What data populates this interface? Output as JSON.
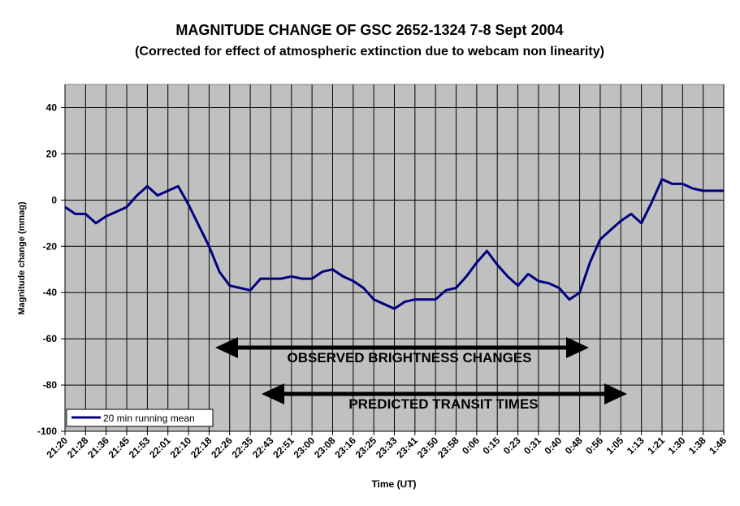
{
  "chart_data": {
    "type": "line",
    "title": "MAGNITUDE CHANGE OF GSC 2652-1324  7-8 Sept 2004",
    "subtitle": "(Corrected for effect of atmospheric extinction due to webcam non linearity)",
    "x_label": "Time (UT)",
    "y_label": "Magnitude change (mmag)",
    "categories": [
      "21:20",
      null,
      "21:28",
      null,
      "21:36",
      null,
      "21:45",
      null,
      "21:53",
      null,
      "22:01",
      null,
      "22:10",
      null,
      "22:18",
      null,
      "22:26",
      null,
      "22:35",
      null,
      "22:43",
      null,
      "22:51",
      null,
      "23:00",
      null,
      "23:08",
      null,
      "23:16",
      null,
      "23:25",
      null,
      "23:33",
      null,
      "23:41",
      null,
      "23:50",
      null,
      "23:58",
      null,
      "0:06",
      null,
      "0:15",
      null,
      "0:23",
      null,
      "0:31",
      null,
      "0:40",
      null,
      "0:48",
      null,
      "0:56",
      null,
      "1:05",
      null,
      "1:13",
      null,
      "1:21",
      null,
      "1:30",
      null,
      "1:38",
      null,
      "1:46"
    ],
    "series": [
      {
        "name": "20 min running mean",
        "color": "#000080",
        "values": [
          -3,
          -6,
          -6,
          -10,
          -7,
          -5,
          -3,
          2,
          6,
          2,
          4,
          6,
          -2,
          -11,
          -20,
          -31,
          -37,
          -38,
          -39,
          -34,
          -34,
          -34,
          -33,
          -34,
          -34,
          -31,
          -30,
          -33,
          -35,
          -38,
          -43,
          -45,
          -47,
          -44,
          -43,
          -43,
          -43,
          -39,
          -38,
          -33,
          -27,
          -22,
          -28,
          -33,
          -37,
          -32,
          -35,
          -36,
          -38,
          -43,
          -40,
          -27,
          -17,
          -13,
          -9,
          -6,
          -10,
          -1,
          9,
          7,
          7,
          5,
          4,
          4,
          4
        ]
      }
    ],
    "ylim": [
      -100,
      50
    ],
    "yticks": [
      40,
      20,
      0,
      -20,
      -40,
      -60,
      -80,
      -100
    ],
    "grid": true,
    "legend": "bottom-left",
    "plot_background": "#c0c0c0",
    "annotations": [
      "OBSERVED BRIGHTNESS CHANGES",
      "PREDICTED TRANSIT TIMES"
    ]
  }
}
